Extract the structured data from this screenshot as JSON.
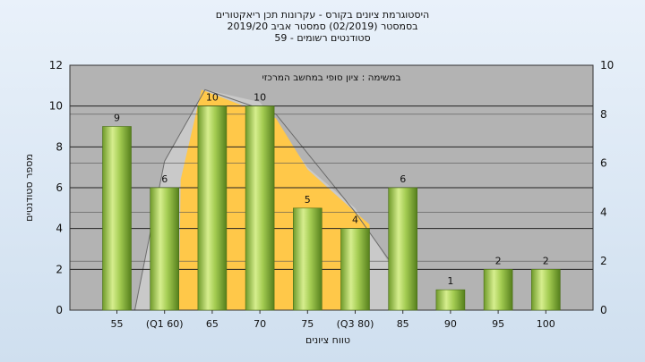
{
  "chart_data": {
    "type": "bar",
    "title_lines": [
      "היסטוגרמת ציונים בקורס - עקרונות תכן ריאקטורים",
      "בסמסטר  (02/2019)  סמסטר אביב 2019/20",
      "סטודנטים רשומים - 59"
    ],
    "subtitle": "במשימה : ציון סופי במחשב המרכזי",
    "xlabel": "טווח ציונים",
    "ylabel": "מספר סטודנטים",
    "categories": [
      "55",
      "(Q1 60)",
      "65",
      "70",
      "75",
      "(Q3 80)",
      "85",
      "90",
      "95",
      "100"
    ],
    "values": [
      9,
      6,
      10,
      10,
      5,
      4,
      6,
      1,
      2,
      2
    ],
    "data_labels": [
      "9",
      "6",
      "10",
      "10",
      "5",
      "4",
      "6",
      "1",
      "2",
      "2"
    ],
    "ylim": [
      0,
      12
    ],
    "yticks": [
      "0",
      "2",
      "4",
      "6",
      "8",
      "10",
      "12"
    ],
    "ylim_right": [
      0,
      10
    ],
    "yticks_right": [
      "0",
      "2",
      "4",
      "6",
      "8",
      "10"
    ],
    "grid": true,
    "colors": {
      "plot_bg": "#b3b3b3",
      "bar_light": "#d4ec8c",
      "bar_mid": "#9cc74a",
      "bar_dark": "#5b8a20",
      "area_fill": "#ffc849",
      "area_gray": "#c9c9c9"
    }
  }
}
